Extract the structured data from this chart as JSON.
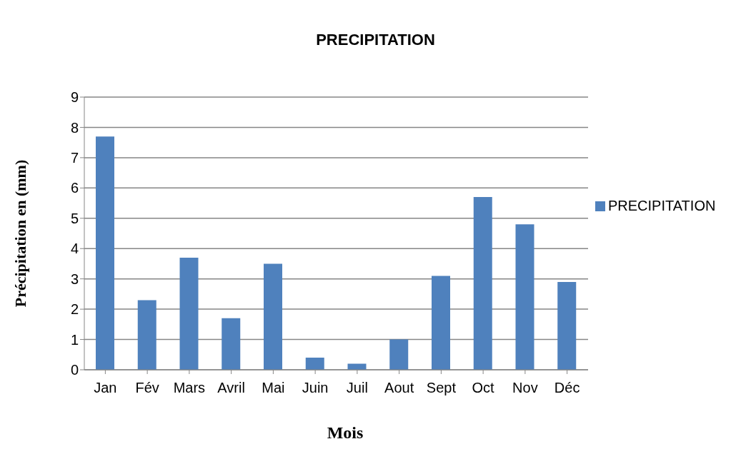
{
  "chart_data": {
    "type": "bar",
    "title": "PRECIPITATION",
    "xlabel": "Mois",
    "ylabel": "Précipitation en (mm)",
    "categories": [
      "Jan",
      "Fév",
      "Mars",
      "Avril",
      "Mai",
      "Juin",
      "Juil",
      "Aout",
      "Sept",
      "Oct",
      "Nov",
      "Déc"
    ],
    "series": [
      {
        "name": "PRECIPITATION",
        "color": "#4f81bd",
        "values": [
          7.7,
          2.3,
          3.7,
          1.7,
          3.5,
          0.4,
          0.2,
          1.0,
          3.1,
          5.7,
          4.8,
          2.9
        ]
      }
    ],
    "ylim": [
      0,
      9
    ],
    "yticks": [
      0,
      1,
      2,
      3,
      4,
      5,
      6,
      7,
      8,
      9
    ],
    "grid": "y",
    "legend": "right"
  }
}
